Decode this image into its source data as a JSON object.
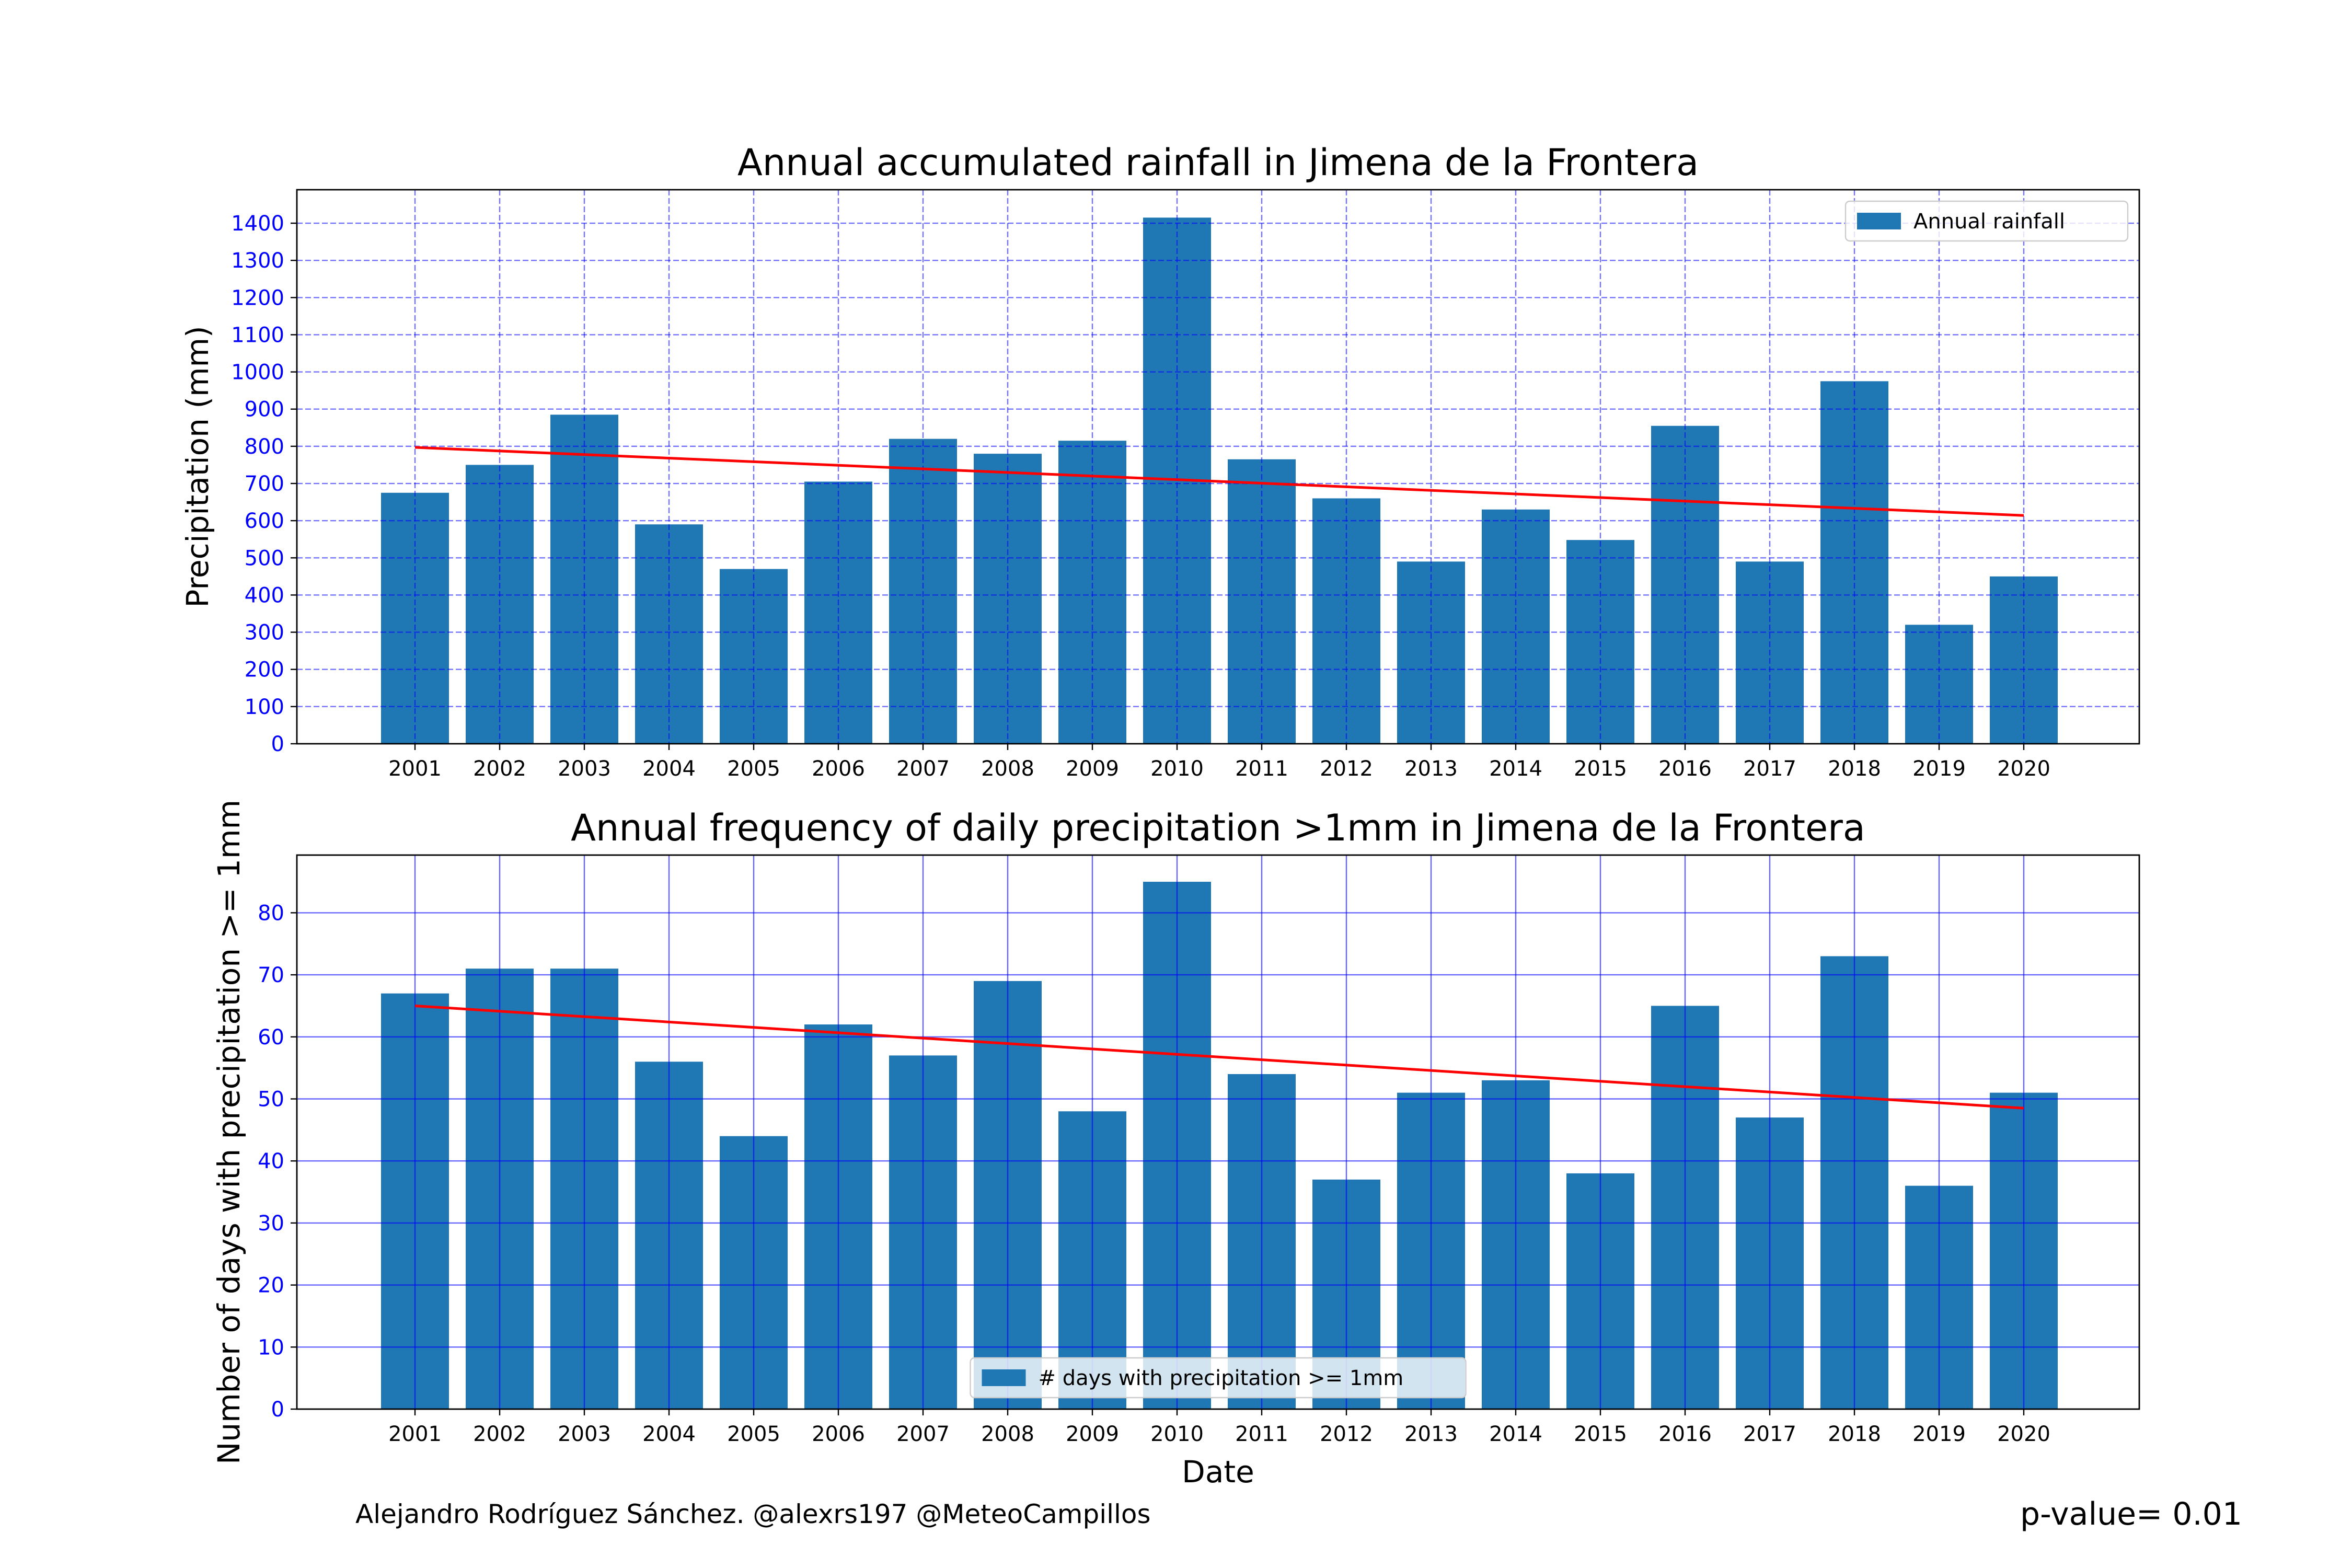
{
  "credit": "Alejandro Rodríguez Sánchez. @alexrs197 @MeteoCampillos",
  "pvalue": "p-value= 0.01",
  "colors": {
    "bar": "#1f77b4",
    "trend": "#ff0000",
    "grid": "#0000ff",
    "tick_label": "#0000ff"
  },
  "chart_data": [
    {
      "type": "bar",
      "title": "Annual accumulated rainfall in Jimena de la Frontera",
      "xlabel": "",
      "ylabel": "Precipitation (mm)",
      "categories": [
        "2001",
        "2002",
        "2003",
        "2004",
        "2005",
        "2006",
        "2007",
        "2008",
        "2009",
        "2010",
        "2011",
        "2012",
        "2013",
        "2014",
        "2015",
        "2016",
        "2017",
        "2018",
        "2019",
        "2020"
      ],
      "series": [
        {
          "name": "Annual rainfall",
          "values": [
            675,
            750,
            885,
            590,
            470,
            705,
            820,
            780,
            815,
            1415,
            765,
            660,
            490,
            630,
            548,
            855,
            490,
            975,
            320,
            450
          ]
        }
      ],
      "trend": {
        "start": 797,
        "end": 614
      },
      "ylim": [
        0,
        1490
      ],
      "yticks": [
        0,
        100,
        200,
        300,
        400,
        500,
        600,
        700,
        800,
        900,
        1000,
        1100,
        1200,
        1300,
        1400
      ],
      "grid": "dashed",
      "legend": "top-right"
    },
    {
      "type": "bar",
      "title": "Annual frequency of daily precipitation >1mm in Jimena de la Frontera",
      "xlabel": "Date",
      "ylabel": "Number of days with precipitation >= 1mm",
      "categories": [
        "2001",
        "2002",
        "2003",
        "2004",
        "2005",
        "2006",
        "2007",
        "2008",
        "2009",
        "2010",
        "2011",
        "2012",
        "2013",
        "2014",
        "2015",
        "2016",
        "2017",
        "2018",
        "2019",
        "2020"
      ],
      "series": [
        {
          "name": "# days with precipitation >= 1mm",
          "values": [
            67,
            71,
            71,
            56,
            44,
            62,
            57,
            69,
            48,
            85,
            54,
            37,
            51,
            53,
            38,
            65,
            47,
            73,
            36,
            51
          ]
        }
      ],
      "trend": {
        "start": 65,
        "end": 48.5
      },
      "ylim": [
        0,
        89.3
      ],
      "yticks": [
        0,
        10,
        20,
        30,
        40,
        50,
        60,
        70,
        80
      ],
      "grid": "solid",
      "legend": "bottom-center"
    }
  ]
}
